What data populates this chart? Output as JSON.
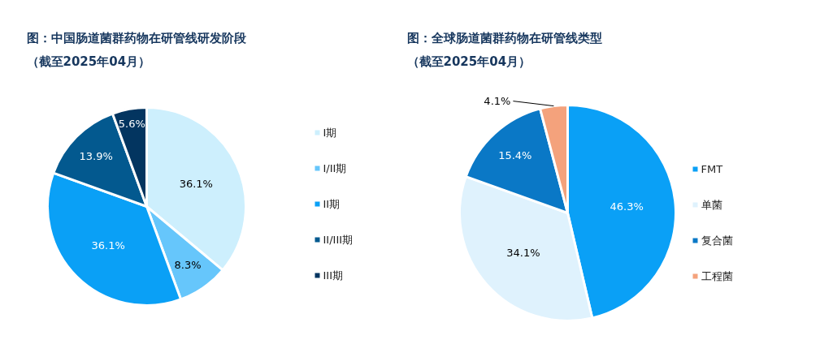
{
  "chart_data": [
    {
      "type": "pie",
      "title": "图：中国肠道菌群药物在研管线研发阶段",
      "subtitle": "（截至2025年04月）",
      "categories": [
        "I期",
        "I/II期",
        "II期",
        "II/III期",
        "III期"
      ],
      "values": [
        36.1,
        8.3,
        36.1,
        13.9,
        5.6
      ],
      "colors": [
        "#cdeffd",
        "#66c6fb",
        "#0aa0f6",
        "#03598f",
        "#033560"
      ],
      "value_labels": [
        "36.1%",
        "8.3%",
        "36.1%",
        "13.9%",
        "5.6%"
      ],
      "legend": "right"
    },
    {
      "type": "pie",
      "title": "图：全球肠道菌群药物在研管线类型",
      "subtitle": "（截至2025年04月）",
      "categories": [
        "FMT",
        "单菌",
        "复合菌",
        "工程菌"
      ],
      "values": [
        46.3,
        34.1,
        15.4,
        4.1
      ],
      "colors": [
        "#0aa0f6",
        "#dff2fd",
        "#0a78c6",
        "#f4a27c"
      ],
      "value_labels": [
        "46.3%",
        "34.1%",
        "15.4%",
        "4.1%"
      ],
      "legend": "right"
    }
  ]
}
